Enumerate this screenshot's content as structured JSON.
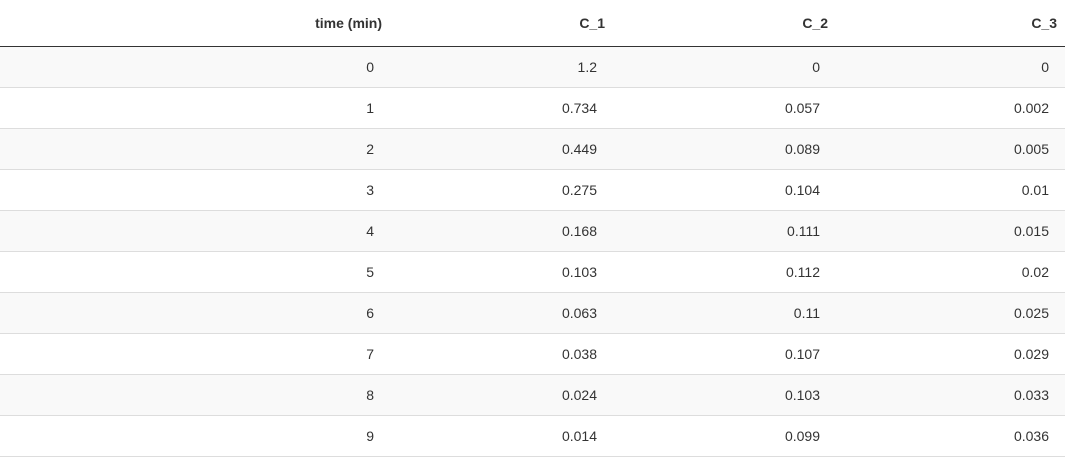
{
  "table": {
    "columns": [
      "time (min)",
      "C_1",
      "C_2",
      "C_3"
    ],
    "rows": [
      [
        "0",
        "1.2",
        "0",
        "0"
      ],
      [
        "1",
        "0.734",
        "0.057",
        "0.002"
      ],
      [
        "2",
        "0.449",
        "0.089",
        "0.005"
      ],
      [
        "3",
        "0.275",
        "0.104",
        "0.01"
      ],
      [
        "4",
        "0.168",
        "0.111",
        "0.015"
      ],
      [
        "5",
        "0.103",
        "0.112",
        "0.02"
      ],
      [
        "6",
        "0.063",
        "0.11",
        "0.025"
      ],
      [
        "7",
        "0.038",
        "0.107",
        "0.029"
      ],
      [
        "8",
        "0.024",
        "0.103",
        "0.033"
      ],
      [
        "9",
        "0.014",
        "0.099",
        "0.036"
      ]
    ]
  }
}
